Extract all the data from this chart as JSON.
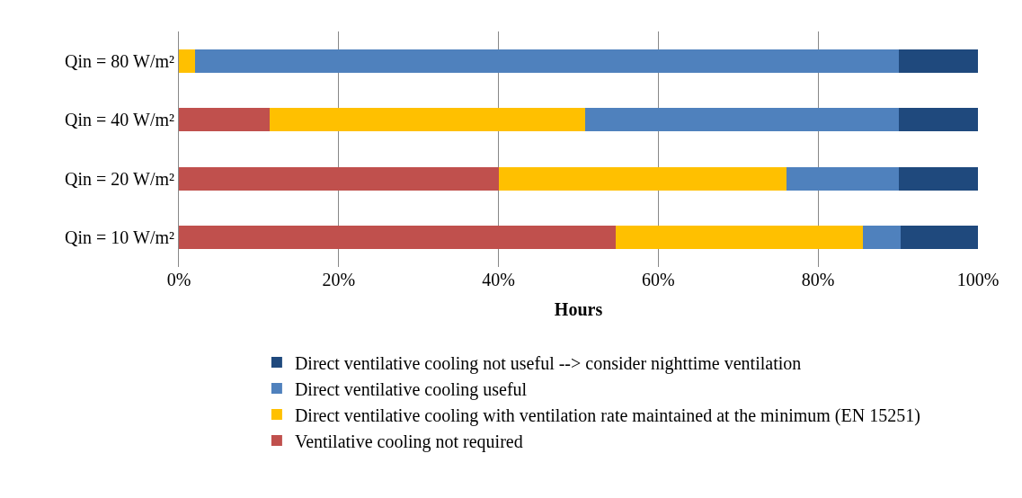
{
  "chart_data": {
    "type": "bar",
    "orientation": "horizontal",
    "stacked": true,
    "xlabel": "Hours",
    "categories": [
      "Qin = 80 W/m²",
      "Qin = 40 W/m²",
      "Qin = 20 W/m²",
      "Qin = 10 W/m²"
    ],
    "series": [
      {
        "name": "Ventilative cooling not required",
        "color": "#c0504d",
        "values": [
          0,
          11.4,
          40.0,
          54.7
        ]
      },
      {
        "name": "Direct ventilative cooling with ventilation rate maintained at the minimum (EN 15251)",
        "color": "#ffc000",
        "values": [
          2.0,
          39.4,
          36.0,
          30.9
        ]
      },
      {
        "name": "Direct ventilative cooling useful",
        "color": "#4f81bd",
        "values": [
          88.1,
          39.3,
          14.1,
          4.7
        ]
      },
      {
        "name": "Direct ventilative cooling not useful --> consider nighttime ventilation",
        "color": "#1f497d",
        "values": [
          9.9,
          9.9,
          9.9,
          9.7
        ]
      }
    ],
    "xlim": [
      0,
      100
    ],
    "xticks": [
      {
        "value": 0,
        "label": "0%"
      },
      {
        "value": 20,
        "label": "20%"
      },
      {
        "value": 40,
        "label": "40%"
      },
      {
        "value": 60,
        "label": "60%"
      },
      {
        "value": 80,
        "label": "80%"
      },
      {
        "value": 100,
        "label": "100%"
      }
    ],
    "grid": "x",
    "legend": "bottom"
  }
}
